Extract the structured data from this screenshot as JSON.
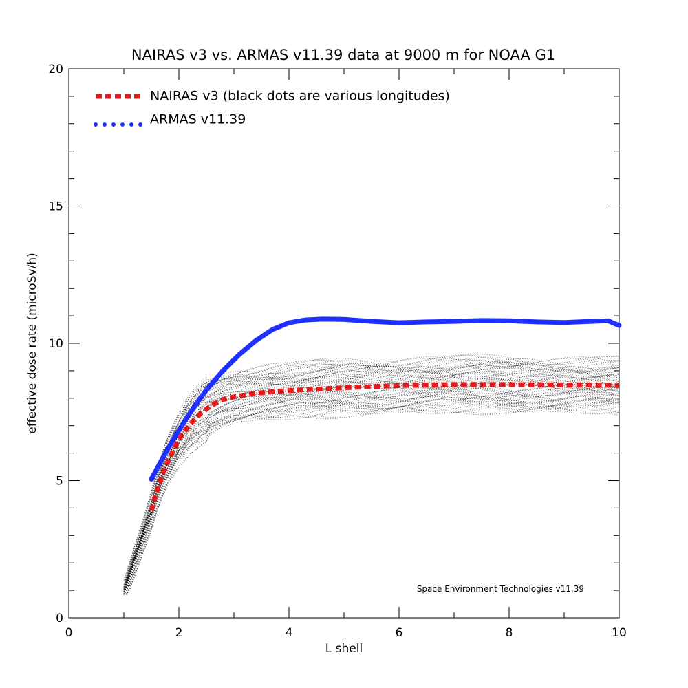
{
  "chart_data": {
    "type": "line",
    "title": "NAIRAS  v3 vs. ARMAS v11.39 data at 9000 m for NOAA G1",
    "xlabel": "L shell",
    "ylabel": "effective dose rate (microSv/h)",
    "xlim": [
      0,
      10
    ],
    "ylim": [
      0,
      20
    ],
    "x_ticks": [
      0,
      2,
      4,
      6,
      8,
      10
    ],
    "y_ticks": [
      0,
      5,
      10,
      15,
      20
    ],
    "grid": false,
    "legend_position": "top-left",
    "credit": "Space Environment Technologies v11.39",
    "series": [
      {
        "name": "NAIRAS v3 (black dots are various longitudes)",
        "color": "#e41a1c",
        "style": "dashed",
        "x": [
          1.5,
          1.6,
          1.7,
          1.8,
          1.9,
          2.0,
          2.2,
          2.4,
          2.6,
          2.8,
          3.0,
          3.3,
          3.6,
          4.0,
          4.5,
          5.0,
          5.5,
          6.0,
          6.5,
          7.0,
          7.5,
          8.0,
          8.5,
          9.0,
          9.5,
          10.0
        ],
        "y": [
          3.9,
          4.6,
          5.2,
          5.7,
          6.1,
          6.5,
          7.05,
          7.45,
          7.75,
          7.95,
          8.05,
          8.15,
          8.22,
          8.28,
          8.33,
          8.38,
          8.42,
          8.46,
          8.48,
          8.5,
          8.5,
          8.5,
          8.49,
          8.48,
          8.48,
          8.46
        ]
      },
      {
        "name": "ARMAS v11.39",
        "color": "#1f2fff",
        "style": "dotted",
        "x": [
          1.5,
          1.7,
          1.9,
          2.1,
          2.3,
          2.5,
          2.8,
          3.1,
          3.4,
          3.7,
          4.0,
          4.3,
          4.6,
          5.0,
          5.5,
          6.0,
          6.5,
          7.0,
          7.5,
          8.0,
          8.5,
          9.0,
          9.5,
          9.8,
          10.0
        ],
        "y": [
          5.05,
          5.8,
          6.5,
          7.15,
          7.75,
          8.3,
          9.0,
          9.6,
          10.1,
          10.5,
          10.75,
          10.85,
          10.88,
          10.87,
          10.8,
          10.75,
          10.78,
          10.8,
          10.83,
          10.82,
          10.78,
          10.76,
          10.8,
          10.82,
          10.65
        ]
      }
    ]
  }
}
